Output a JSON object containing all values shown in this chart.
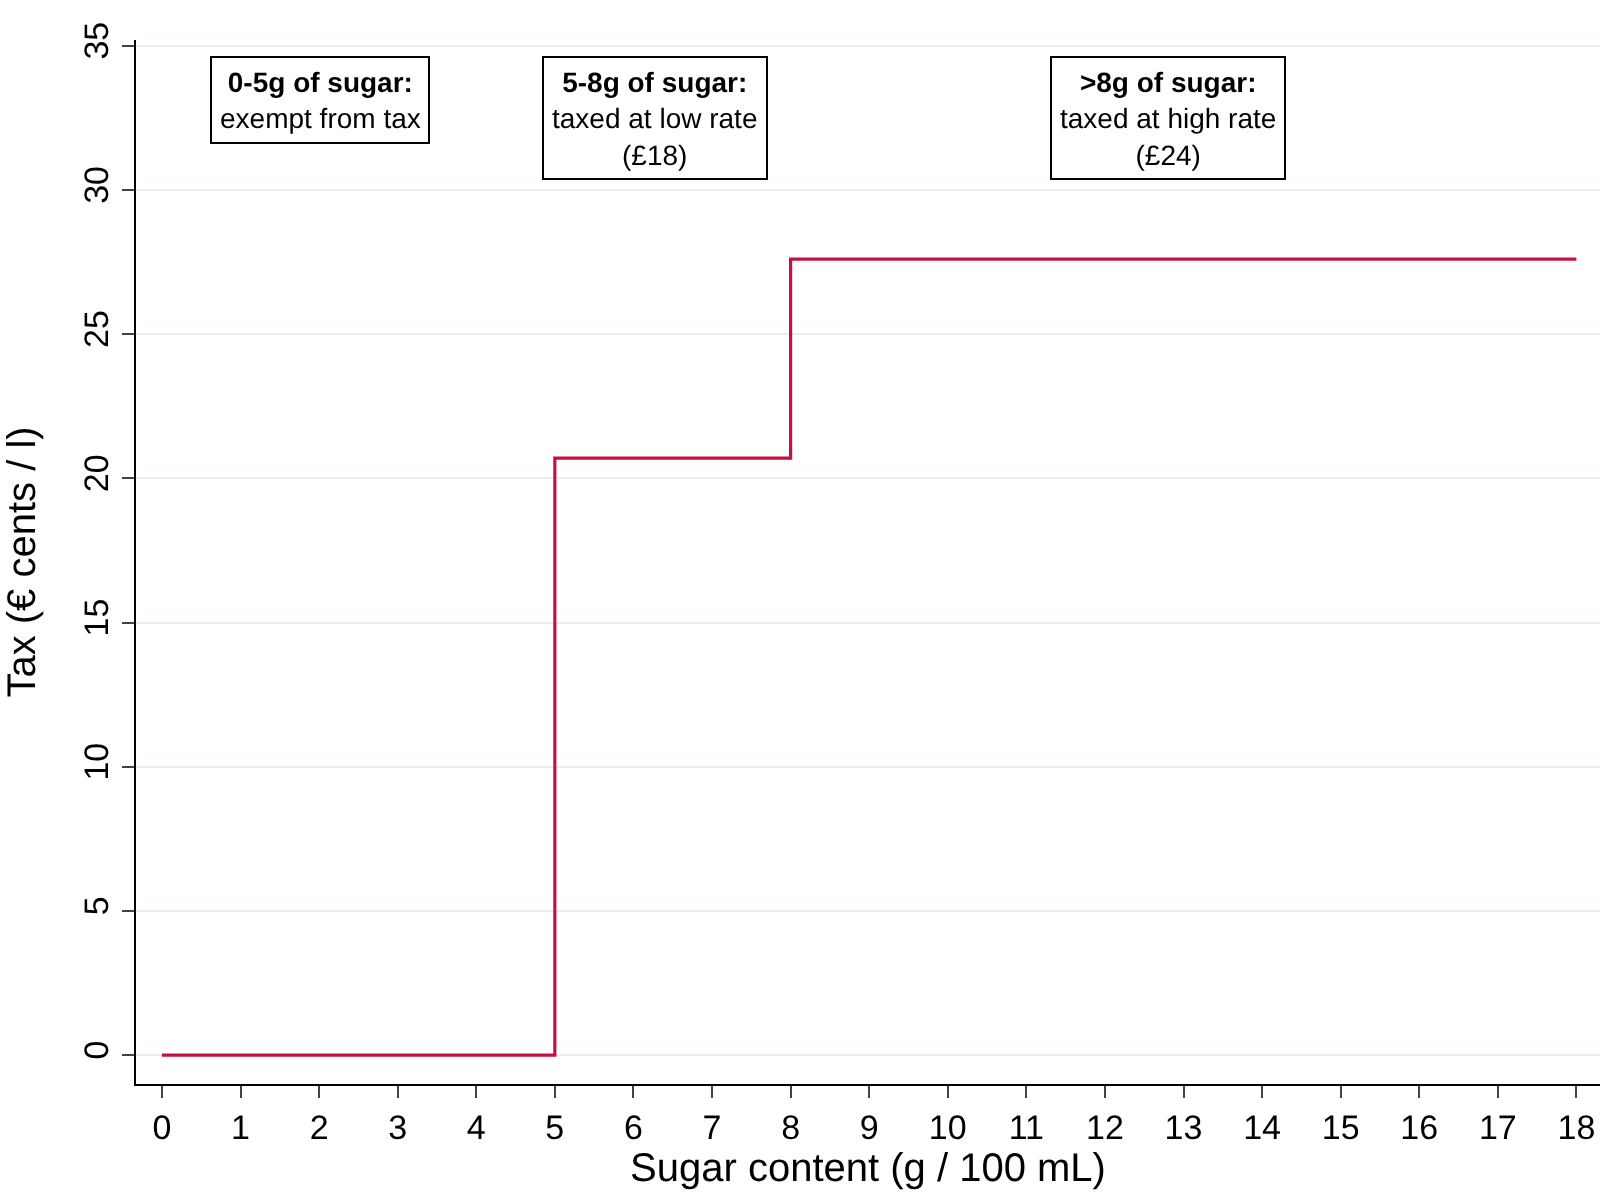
{
  "chart_data": {
    "type": "step",
    "xlabel": "Sugar content (g / 100 mL)",
    "ylabel": "Tax (€ cents / l)",
    "x": [
      0,
      5,
      8,
      18
    ],
    "series": [
      {
        "color": "#c4123f",
        "values": [
          0,
          20.7,
          27.6,
          27.6
        ]
      }
    ],
    "xlim": [
      -0.33,
      18.3
    ],
    "xticks": [
      0,
      1,
      2,
      3,
      4,
      5,
      6,
      7,
      8,
      9,
      10,
      11,
      12,
      13,
      14,
      15,
      16,
      17,
      18
    ],
    "ylim": [
      -1,
      35.2
    ],
    "yticks": [
      0,
      5,
      10,
      15,
      20,
      25,
      30,
      35
    ],
    "grid": "y",
    "marker": "none",
    "line_style": "solid",
    "annotations": [
      "0-5g of sugar:\nexempt from tax",
      "5-8g of sugar:\ntaxed at low rate\n(£18)",
      ">8g of sugar:\ntaxed at high rate\n(£24)"
    ]
  }
}
